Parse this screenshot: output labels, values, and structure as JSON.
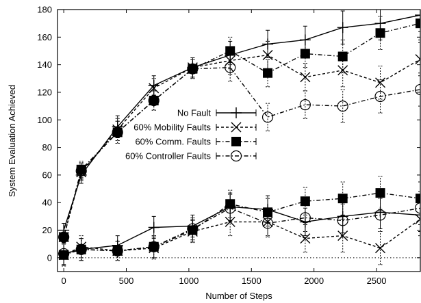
{
  "chart_data": {
    "type": "line",
    "title": "",
    "xlabel": "Number of Steps",
    "ylabel": "System Evaluation Achieved",
    "xlim": [
      -50,
      2850
    ],
    "ylim": [
      -10,
      180
    ],
    "xticks": [
      0,
      500,
      1000,
      1500,
      2000,
      2500
    ],
    "yticks": [
      0,
      20,
      40,
      60,
      80,
      100,
      120,
      140,
      160,
      180
    ],
    "grid": false,
    "legend_position": "center",
    "baseline": {
      "y": 0,
      "style": "dotted"
    },
    "x": [
      0,
      140,
      430,
      720,
      1030,
      1330,
      1630,
      1930,
      2230,
      2530,
      2850
    ],
    "series": [
      {
        "name": "No Fault",
        "group": "upper",
        "marker": "plus",
        "line": "solid",
        "values": [
          20,
          60,
          95,
          125,
          138,
          147,
          155,
          158,
          167,
          170,
          176
        ],
        "err": [
          5,
          6,
          8,
          7,
          7,
          10,
          10,
          10,
          12,
          12,
          12
        ]
      },
      {
        "name": "No Fault",
        "group": "lower",
        "marker": "plus",
        "line": "solid",
        "values": [
          3,
          6,
          9,
          22,
          23,
          37,
          35,
          26,
          30,
          33,
          31
        ],
        "err": [
          8,
          8,
          7,
          8,
          8,
          10,
          10,
          10,
          12,
          12,
          12
        ]
      },
      {
        "name": "60% Mobility Faults",
        "group": "upper",
        "marker": "x",
        "line": "dashed",
        "values": [
          15,
          62,
          93,
          123,
          138,
          143,
          147,
          131,
          136,
          127,
          144
        ],
        "err": [
          5,
          6,
          8,
          7,
          7,
          10,
          10,
          10,
          12,
          12,
          12
        ]
      },
      {
        "name": "60% Mobility Faults",
        "group": "lower",
        "marker": "x",
        "line": "dashed",
        "values": [
          2,
          8,
          5,
          7,
          19,
          26,
          26,
          14,
          16,
          7,
          28
        ],
        "err": [
          8,
          8,
          7,
          8,
          8,
          10,
          10,
          10,
          12,
          12,
          12
        ]
      },
      {
        "name": "60% Comm. Faults",
        "group": "upper",
        "marker": "square",
        "line": "dashdot",
        "values": [
          15,
          64,
          91,
          114,
          137,
          150,
          134,
          148,
          146,
          163,
          170
        ],
        "err": [
          5,
          6,
          8,
          7,
          7,
          10,
          10,
          10,
          12,
          12,
          12
        ]
      },
      {
        "name": "60% Comm. Faults",
        "group": "lower",
        "marker": "square",
        "line": "dashdot",
        "values": [
          2,
          6,
          5,
          8,
          20,
          39,
          33,
          41,
          43,
          47,
          43
        ],
        "err": [
          8,
          8,
          7,
          8,
          8,
          10,
          10,
          10,
          12,
          12,
          12
        ]
      },
      {
        "name": "60% Controller Faults",
        "group": "upper",
        "marker": "circle",
        "line": "dashdot",
        "values": [
          15,
          63,
          91,
          114,
          137,
          138,
          102,
          111,
          110,
          117,
          122
        ],
        "err": [
          5,
          6,
          8,
          7,
          7,
          10,
          10,
          10,
          12,
          12,
          12
        ]
      },
      {
        "name": "60% Controller Faults",
        "group": "lower",
        "marker": "circle",
        "line": "dashdot",
        "values": [
          3,
          6,
          5,
          8,
          21,
          36,
          25,
          29,
          27,
          31,
          36
        ],
        "err": [
          8,
          8,
          7,
          8,
          8,
          10,
          10,
          10,
          12,
          12,
          12
        ]
      }
    ]
  }
}
